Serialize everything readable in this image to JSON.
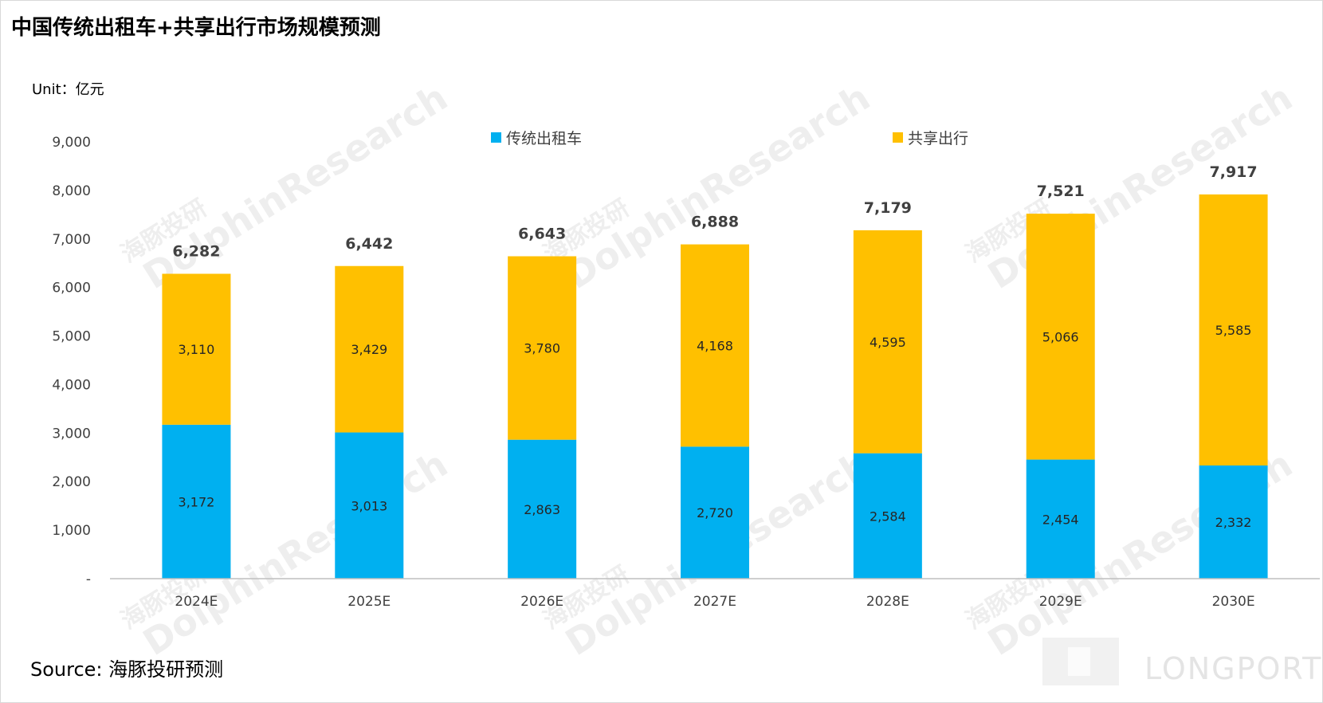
{
  "title": "中国传统出租车+共享出行市场规模预测",
  "unit": "Unit：亿元",
  "source": "Source: 海豚投研预测",
  "watermark": "海豚投研 DolphinResearch",
  "watermark_logo": "LONGPORT",
  "colors": {
    "taxi": "#00b0f0",
    "ride": "#ffc000"
  },
  "chart_data": {
    "type": "bar",
    "stacked": true,
    "categories": [
      "2024E",
      "2025E",
      "2026E",
      "2027E",
      "2028E",
      "2029E",
      "2030E"
    ],
    "series": [
      {
        "name": "传统出租车",
        "values": [
          3172,
          3013,
          2863,
          2720,
          2584,
          2454,
          2332
        ]
      },
      {
        "name": "共享出行",
        "values": [
          3110,
          3429,
          3780,
          4168,
          4595,
          5066,
          5585
        ]
      }
    ],
    "series_labels": [
      [
        "3,172",
        "3,013",
        "2,863",
        "2,720",
        "2,584",
        "2,454",
        "2,332"
      ],
      [
        "3,110",
        "3,429",
        "3,780",
        "4,168",
        "4,595",
        "5,066",
        "5,585"
      ]
    ],
    "totals": [
      6282,
      6442,
      6643,
      6888,
      7179,
      7521,
      7917
    ],
    "total_labels": [
      "6,282",
      "6,442",
      "6,643",
      "6,888",
      "7,179",
      "7,521",
      "7,917"
    ],
    "yticks": [
      0,
      1000,
      2000,
      3000,
      4000,
      5000,
      6000,
      7000,
      8000,
      9000
    ],
    "ytick_labels": [
      "-",
      "1,000",
      "2,000",
      "3,000",
      "4,000",
      "5,000",
      "6,000",
      "7,000",
      "8,000",
      "9,000"
    ],
    "ylim": [
      0,
      9000
    ],
    "legend_position": "top",
    "grid": false
  }
}
